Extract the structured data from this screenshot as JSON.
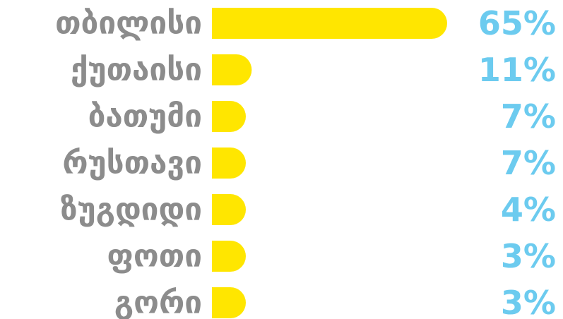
{
  "chart_data": {
    "type": "bar",
    "orientation": "horizontal",
    "categories": [
      "თბილისი",
      "ქუთაისი",
      "ბათუმი",
      "რუსთავი",
      "ზუგდიდი",
      "ფოთი",
      "გორი"
    ],
    "values": [
      65,
      11,
      7,
      7,
      4,
      3,
      3
    ],
    "value_labels": [
      "65%",
      "11%",
      "7%",
      "7%",
      "4%",
      "3%",
      "3%"
    ],
    "unit": "%",
    "xlim": [
      0,
      65
    ],
    "grid": false,
    "legend": "none",
    "colors": {
      "bar": "#FFE600",
      "category_text": "#8C8C8C",
      "value_text": "#6CCBEF",
      "background": "#FFFFFF"
    }
  }
}
